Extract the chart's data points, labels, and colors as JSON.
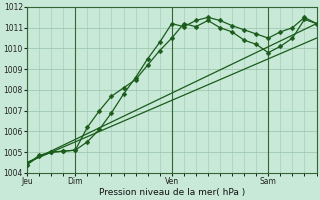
{
  "xlabel": "Pression niveau de la mer( hPa )",
  "ylim": [
    1004,
    1012
  ],
  "yticks": [
    1004,
    1005,
    1006,
    1007,
    1008,
    1009,
    1010,
    1011,
    1012
  ],
  "bg_color": "#c8e8d8",
  "grid_color": "#a0c8b0",
  "line_color": "#1a5c1a",
  "day_labels": [
    "Jeu",
    "Dim",
    "Ven",
    "Sam"
  ],
  "day_positions": [
    0,
    24,
    72,
    120
  ],
  "vline_positions": [
    0,
    24,
    72,
    120
  ],
  "xlim": [
    0,
    144
  ],
  "line1_x": [
    0,
    6,
    12,
    18,
    24,
    30,
    36,
    42,
    48,
    54,
    60,
    66,
    72,
    78,
    84,
    90,
    96,
    102,
    108,
    114,
    120,
    126,
    132,
    138,
    144
  ],
  "line1_y": [
    1004.4,
    1004.8,
    1005.0,
    1005.05,
    1005.1,
    1006.2,
    1007.0,
    1007.7,
    1008.1,
    1008.5,
    1009.2,
    1009.9,
    1010.5,
    1011.2,
    1011.05,
    1011.35,
    1011.0,
    1010.8,
    1010.4,
    1010.2,
    1009.8,
    1010.1,
    1010.5,
    1011.4,
    1011.2
  ],
  "line2_x": [
    0,
    6,
    12,
    18,
    24,
    30,
    36,
    42,
    48,
    54,
    60,
    66,
    72,
    78,
    84,
    90,
    96,
    102,
    108,
    114,
    120,
    126,
    132,
    138,
    144
  ],
  "line2_y": [
    1004.4,
    1004.85,
    1005.0,
    1005.05,
    1005.1,
    1005.5,
    1006.1,
    1006.9,
    1007.8,
    1008.6,
    1009.5,
    1010.3,
    1011.2,
    1011.05,
    1011.35,
    1011.5,
    1011.35,
    1011.1,
    1010.9,
    1010.7,
    1010.5,
    1010.8,
    1011.0,
    1011.5,
    1011.2
  ],
  "line3_x": [
    0,
    144
  ],
  "line3_y": [
    1004.5,
    1011.2
  ],
  "line4_x": [
    0,
    144
  ],
  "line4_y": [
    1004.5,
    1010.5
  ],
  "figsize": [
    3.2,
    2.0
  ],
  "dpi": 100
}
